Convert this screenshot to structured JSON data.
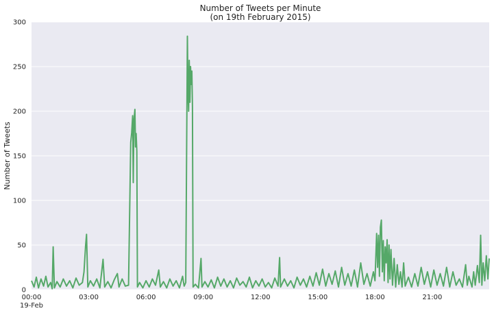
{
  "chart_data": {
    "type": "line",
    "title_line1": "Number of Tweets per Minute",
    "title_line2": "(on 19th February 2015)",
    "xlabel": "",
    "ylabel": "Number of Tweets",
    "xlim": [
      "00:00",
      "23:59"
    ],
    "ylim": [
      0,
      300
    ],
    "y_ticks": [
      0,
      50,
      100,
      150,
      200,
      250,
      300
    ],
    "x_ticks": [
      "00:00",
      "03:00",
      "06:00",
      "09:00",
      "12:00",
      "15:00",
      "18:00",
      "21:00"
    ],
    "x_date_label": "19-Feb",
    "grid": true,
    "line_color": "#55a868",
    "background_color": "#eaeaf2",
    "points": [
      [
        "00:00",
        10
      ],
      [
        "00:08",
        3
      ],
      [
        "00:15",
        14
      ],
      [
        "00:22",
        2
      ],
      [
        "00:30",
        12
      ],
      [
        "00:38",
        4
      ],
      [
        "00:45",
        15
      ],
      [
        "00:52",
        3
      ],
      [
        "01:00",
        8
      ],
      [
        "01:05",
        1
      ],
      [
        "01:08",
        48
      ],
      [
        "01:12",
        2
      ],
      [
        "01:20",
        9
      ],
      [
        "01:30",
        3
      ],
      [
        "01:40",
        12
      ],
      [
        "01:50",
        4
      ],
      [
        "02:00",
        10
      ],
      [
        "02:10",
        2
      ],
      [
        "02:20",
        13
      ],
      [
        "02:30",
        5
      ],
      [
        "02:40",
        8
      ],
      [
        "02:45",
        20
      ],
      [
        "02:50",
        49
      ],
      [
        "02:53",
        62
      ],
      [
        "02:57",
        3
      ],
      [
        "03:05",
        10
      ],
      [
        "03:15",
        4
      ],
      [
        "03:25",
        12
      ],
      [
        "03:35",
        2
      ],
      [
        "03:45",
        34
      ],
      [
        "03:50",
        3
      ],
      [
        "04:00",
        9
      ],
      [
        "04:10",
        2
      ],
      [
        "04:20",
        11
      ],
      [
        "04:30",
        18
      ],
      [
        "04:35",
        3
      ],
      [
        "04:45",
        12
      ],
      [
        "04:55",
        4
      ],
      [
        "05:05",
        5
      ],
      [
        "05:12",
        165
      ],
      [
        "05:15",
        176
      ],
      [
        "05:18",
        195
      ],
      [
        "05:20",
        120
      ],
      [
        "05:22",
        190
      ],
      [
        "05:25",
        202
      ],
      [
        "05:27",
        160
      ],
      [
        "05:29",
        175
      ],
      [
        "05:31",
        155
      ],
      [
        "05:33",
        3
      ],
      [
        "05:40",
        8
      ],
      [
        "05:50",
        2
      ],
      [
        "06:00",
        10
      ],
      [
        "06:10",
        3
      ],
      [
        "06:20",
        12
      ],
      [
        "06:30",
        5
      ],
      [
        "06:40",
        22
      ],
      [
        "06:45",
        3
      ],
      [
        "06:55",
        9
      ],
      [
        "07:05",
        2
      ],
      [
        "07:15",
        12
      ],
      [
        "07:25",
        4
      ],
      [
        "07:35",
        10
      ],
      [
        "07:45",
        2
      ],
      [
        "07:55",
        15
      ],
      [
        "08:00",
        4
      ],
      [
        "08:05",
        8
      ],
      [
        "08:10",
        284
      ],
      [
        "08:12",
        220
      ],
      [
        "08:14",
        200
      ],
      [
        "08:16",
        257
      ],
      [
        "08:18",
        210
      ],
      [
        "08:20",
        250
      ],
      [
        "08:22",
        230
      ],
      [
        "08:24",
        245
      ],
      [
        "08:26",
        205
      ],
      [
        "08:28",
        3
      ],
      [
        "08:35",
        6
      ],
      [
        "08:45",
        2
      ],
      [
        "08:53",
        35
      ],
      [
        "08:56",
        3
      ],
      [
        "09:05",
        9
      ],
      [
        "09:15",
        3
      ],
      [
        "09:25",
        11
      ],
      [
        "09:35",
        2
      ],
      [
        "09:45",
        14
      ],
      [
        "09:55",
        4
      ],
      [
        "10:05",
        12
      ],
      [
        "10:15",
        3
      ],
      [
        "10:25",
        10
      ],
      [
        "10:35",
        2
      ],
      [
        "10:45",
        13
      ],
      [
        "10:55",
        5
      ],
      [
        "11:05",
        9
      ],
      [
        "11:15",
        3
      ],
      [
        "11:25",
        14
      ],
      [
        "11:35",
        2
      ],
      [
        "11:45",
        10
      ],
      [
        "11:55",
        4
      ],
      [
        "12:05",
        12
      ],
      [
        "12:15",
        3
      ],
      [
        "12:25",
        8
      ],
      [
        "12:35",
        2
      ],
      [
        "12:45",
        13
      ],
      [
        "12:55",
        4
      ],
      [
        "13:00",
        36
      ],
      [
        "13:03",
        3
      ],
      [
        "13:15",
        12
      ],
      [
        "13:25",
        4
      ],
      [
        "13:35",
        10
      ],
      [
        "13:45",
        2
      ],
      [
        "13:55",
        14
      ],
      [
        "14:05",
        5
      ],
      [
        "14:15",
        12
      ],
      [
        "14:25",
        3
      ],
      [
        "14:35",
        15
      ],
      [
        "14:45",
        4
      ],
      [
        "14:55",
        19
      ],
      [
        "15:05",
        5
      ],
      [
        "15:15",
        23
      ],
      [
        "15:25",
        4
      ],
      [
        "15:35",
        18
      ],
      [
        "15:45",
        6
      ],
      [
        "15:55",
        21
      ],
      [
        "16:05",
        3
      ],
      [
        "16:15",
        25
      ],
      [
        "16:25",
        5
      ],
      [
        "16:35",
        18
      ],
      [
        "16:45",
        4
      ],
      [
        "16:55",
        22
      ],
      [
        "17:05",
        3
      ],
      [
        "17:15",
        30
      ],
      [
        "17:25",
        6
      ],
      [
        "17:35",
        18
      ],
      [
        "17:45",
        4
      ],
      [
        "17:55",
        20
      ],
      [
        "18:00",
        10
      ],
      [
        "18:05",
        63
      ],
      [
        "18:08",
        25
      ],
      [
        "18:11",
        61
      ],
      [
        "18:14",
        15
      ],
      [
        "18:17",
        70
      ],
      [
        "18:20",
        78
      ],
      [
        "18:23",
        20
      ],
      [
        "18:26",
        55
      ],
      [
        "18:29",
        10
      ],
      [
        "18:32",
        48
      ],
      [
        "18:35",
        30
      ],
      [
        "18:38",
        56
      ],
      [
        "18:41",
        8
      ],
      [
        "18:44",
        50
      ],
      [
        "18:47",
        12
      ],
      [
        "18:50",
        45
      ],
      [
        "18:55",
        5
      ],
      [
        "19:00",
        35
      ],
      [
        "19:05",
        3
      ],
      [
        "19:10",
        28
      ],
      [
        "19:15",
        6
      ],
      [
        "19:20",
        20
      ],
      [
        "19:25",
        3
      ],
      [
        "19:30",
        30
      ],
      [
        "19:35",
        4
      ],
      [
        "19:45",
        14
      ],
      [
        "19:55",
        3
      ],
      [
        "20:05",
        18
      ],
      [
        "20:15",
        4
      ],
      [
        "20:25",
        25
      ],
      [
        "20:35",
        6
      ],
      [
        "20:45",
        20
      ],
      [
        "20:55",
        3
      ],
      [
        "21:05",
        22
      ],
      [
        "21:15",
        5
      ],
      [
        "21:25",
        18
      ],
      [
        "21:35",
        4
      ],
      [
        "21:45",
        25
      ],
      [
        "21:55",
        3
      ],
      [
        "22:05",
        20
      ],
      [
        "22:15",
        5
      ],
      [
        "22:25",
        12
      ],
      [
        "22:35",
        3
      ],
      [
        "22:45",
        28
      ],
      [
        "22:50",
        5
      ],
      [
        "22:55",
        15
      ],
      [
        "23:05",
        3
      ],
      [
        "23:10",
        20
      ],
      [
        "23:15",
        5
      ],
      [
        "23:22",
        27
      ],
      [
        "23:28",
        8
      ],
      [
        "23:32",
        61
      ],
      [
        "23:36",
        5
      ],
      [
        "23:40",
        30
      ],
      [
        "23:45",
        10
      ],
      [
        "23:50",
        38
      ],
      [
        "23:55",
        12
      ],
      [
        "23:59",
        35
      ]
    ]
  }
}
